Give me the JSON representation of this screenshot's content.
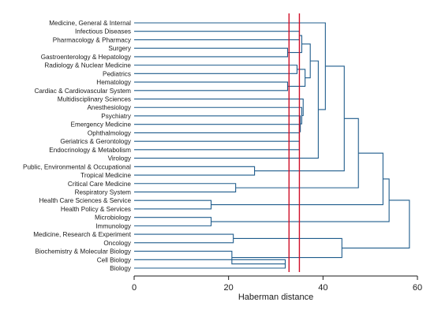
{
  "chart_data": {
    "type": "dendrogram",
    "orientation": "horizontal",
    "xlabel": "Haberman distance",
    "xlim": [
      0,
      61
    ],
    "xticks": [
      0,
      20,
      40,
      60
    ],
    "leaves": [
      "Medicine, General & Internal",
      "Infectious Diseases",
      "Pharmacology & Pharmacy",
      "Surgery",
      "Gastroenterology & Hepatology",
      "Radiology & Nuclear Medicine",
      "Pediatrics",
      "Hematology",
      "Cardiac & Cardiovascular System",
      "Multidisciplinary Sciences",
      "Anesthesiology",
      "Psychiatry",
      "Emergency Medicine",
      "Ophthalmology",
      "Geriatrics & Gerontology",
      "Endocrinology & Metabolism",
      "Virology",
      "Public, Environmental & Occupational",
      "Tropical Medicine",
      "Critical Care Medicine",
      "Respiratory System",
      "Health Care Sciences & Service",
      "Health Policy & Services",
      "Microbiology",
      "Immunology",
      "Medicine, Research & Experiment",
      "Oncology",
      "Biochemistry & Molecular Biology",
      "Cell Biology",
      "Biology"
    ],
    "merges": [
      {
        "children": [
          "L3",
          "L4"
        ],
        "height": 32.5
      },
      {
        "children": [
          "L7",
          "L8"
        ],
        "height": 32.5
      },
      {
        "children": [
          "L1",
          "L2"
        ],
        "height": 35.0
      },
      {
        "children": [
          "L5",
          "L6"
        ],
        "height": 34.5
      },
      {
        "children": [
          "L14",
          "L15"
        ],
        "height": 35.0
      },
      {
        "children": [
          "L13",
          "N4"
        ],
        "height": 35.0
      },
      {
        "children": [
          "L12",
          "N5"
        ],
        "height": 35.0
      },
      {
        "children": [
          "L11",
          "N6"
        ],
        "height": 35.2
      },
      {
        "children": [
          "L10",
          "N7"
        ],
        "height": 35.5
      },
      {
        "children": [
          "L9",
          "N8"
        ],
        "height": 35.8
      },
      {
        "children": [
          "N3",
          "N1"
        ],
        "height": 36.2
      },
      {
        "children": [
          "N2",
          "N0"
        ],
        "height": 35.5
      },
      {
        "children": [
          "N11",
          "N10"
        ],
        "height": 37.3
      },
      {
        "children": [
          "N12",
          "L16"
        ],
        "height": 39.0
      },
      {
        "children": [
          "L0",
          "N13"
        ],
        "height": 40.5
      },
      {
        "children": [
          "L17",
          "L18"
        ],
        "height": 25.5
      },
      {
        "children": [
          "N14",
          "N15"
        ],
        "height": 44.5
      },
      {
        "children": [
          "L19",
          "L20"
        ],
        "height": 21.5
      },
      {
        "children": [
          "N16",
          "N17"
        ],
        "height": 47.5
      },
      {
        "children": [
          "L21",
          "L22"
        ],
        "height": 16.3
      },
      {
        "children": [
          "L23",
          "L24"
        ],
        "height": 16.3
      },
      {
        "children": [
          "N18",
          "N19"
        ],
        "height": 52.7
      },
      {
        "children": [
          "N21",
          "N20"
        ],
        "height": 54.0
      },
      {
        "children": [
          "L25",
          "L26"
        ],
        "height": 21.0
      },
      {
        "children": [
          "L28",
          "L29"
        ],
        "height": 32.0
      },
      {
        "children": [
          "L27",
          "N24"
        ],
        "height": 20.7
      },
      {
        "children": [
          "N23",
          "N25"
        ],
        "height": 44.0
      },
      {
        "children": [
          "N22",
          "N26"
        ],
        "height": 58.3
      }
    ],
    "reference_lines": [
      32.8,
      35.0
    ],
    "grid": false,
    "legend": "none"
  },
  "colors": {
    "links": "#1f5c8c",
    "reference_lines": "#d0102a",
    "text": "#1a1a1a",
    "background": "#ffffff"
  }
}
